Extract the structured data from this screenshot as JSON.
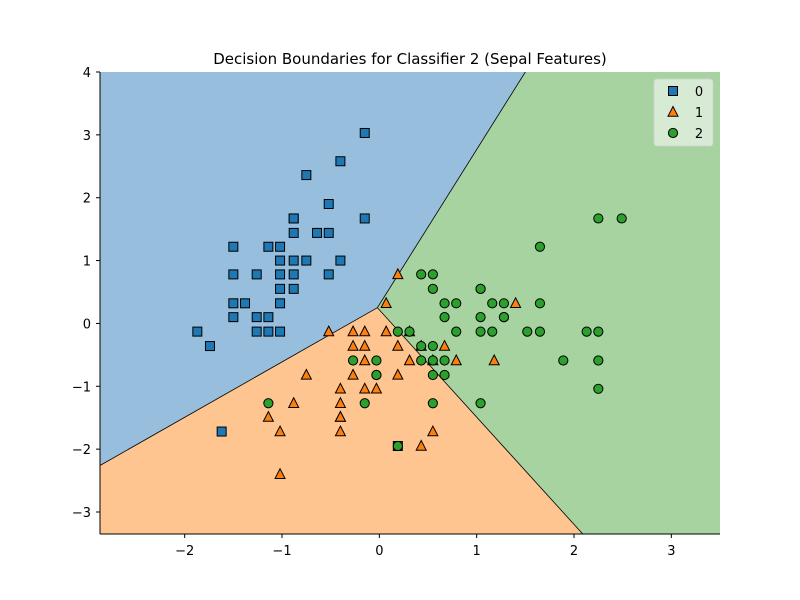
{
  "chart_data": {
    "type": "scatter",
    "title": "Decision Boundaries for Classifier 2 (Sepal Features)",
    "xlabel": "",
    "ylabel": "",
    "xlim": [
      -2.87,
      3.5
    ],
    "ylim": [
      -3.35,
      4.0
    ],
    "xticks": [
      -2,
      -1,
      0,
      1,
      2,
      3
    ],
    "yticks": [
      -3,
      -2,
      -1,
      0,
      1,
      2,
      3,
      4
    ],
    "xtick_labels": [
      "−2",
      "−1",
      "0",
      "1",
      "2",
      "3"
    ],
    "ytick_labels": [
      "−3",
      "−2",
      "−1",
      "0",
      "1",
      "2",
      "3",
      "4"
    ],
    "grid": false,
    "legend_position": "top-right",
    "regions": [
      {
        "class": "0",
        "color": "#98bedd",
        "polygon": [
          [
            -2.87,
            4.0
          ],
          [
            1.5,
            4.0
          ],
          [
            -0.02,
            0.25
          ],
          [
            -2.87,
            -2.26
          ]
        ]
      },
      {
        "class": "2",
        "color": "#a7d3a0",
        "polygon": [
          [
            1.5,
            4.0
          ],
          [
            3.5,
            4.0
          ],
          [
            3.5,
            -3.35
          ],
          [
            2.09,
            -3.35
          ],
          [
            -0.02,
            0.25
          ]
        ]
      },
      {
        "class": "1",
        "color": "#fec591",
        "polygon": [
          [
            -2.87,
            -2.26
          ],
          [
            -0.02,
            0.25
          ],
          [
            2.09,
            -3.35
          ],
          [
            -2.87,
            -3.35
          ]
        ]
      }
    ],
    "series": [
      {
        "name": "0",
        "marker": "square",
        "color": "#1f77b4",
        "points": [
          [
            -0.15,
            3.03
          ],
          [
            -0.4,
            2.58
          ],
          [
            -0.75,
            2.36
          ],
          [
            -0.88,
            1.67
          ],
          [
            -0.88,
            1.67
          ],
          [
            -0.52,
            1.9
          ],
          [
            -0.15,
            1.67
          ],
          [
            -0.88,
            1.44
          ],
          [
            -0.64,
            1.44
          ],
          [
            -0.52,
            1.44
          ],
          [
            -1.5,
            1.22
          ],
          [
            -1.14,
            1.22
          ],
          [
            -1.02,
            1.22
          ],
          [
            -1.02,
            1.0
          ],
          [
            -0.88,
            1.0
          ],
          [
            -0.75,
            1.0
          ],
          [
            -0.4,
            1.0
          ],
          [
            -1.26,
            0.78
          ],
          [
            -1.5,
            0.78
          ],
          [
            -1.02,
            0.78
          ],
          [
            -0.88,
            0.78
          ],
          [
            -0.52,
            0.78
          ],
          [
            -1.02,
            0.55
          ],
          [
            -0.88,
            0.55
          ],
          [
            -1.5,
            0.32
          ],
          [
            -1.38,
            0.32
          ],
          [
            -1.02,
            0.32
          ],
          [
            -1.5,
            0.1
          ],
          [
            -1.26,
            0.1
          ],
          [
            -1.14,
            0.1
          ],
          [
            -1.26,
            -0.13
          ],
          [
            -1.14,
            -0.13
          ],
          [
            -1.02,
            -0.13
          ],
          [
            -1.87,
            -0.13
          ],
          [
            -1.74,
            -0.36
          ],
          [
            -1.62,
            -1.72
          ],
          [
            0.19,
            -1.95
          ]
        ]
      },
      {
        "name": "1",
        "marker": "triangle",
        "color": "#ff7f0e",
        "points": [
          [
            0.19,
            0.78
          ],
          [
            0.07,
            0.32
          ],
          [
            1.4,
            0.32
          ],
          [
            -0.52,
            -0.13
          ],
          [
            -0.27,
            -0.13
          ],
          [
            -0.15,
            -0.13
          ],
          [
            0.07,
            -0.13
          ],
          [
            0.31,
            -0.13
          ],
          [
            -0.27,
            -0.36
          ],
          [
            -0.15,
            -0.36
          ],
          [
            0.19,
            -0.36
          ],
          [
            0.43,
            -0.36
          ],
          [
            0.67,
            -0.36
          ],
          [
            -0.15,
            -0.59
          ],
          [
            0.31,
            -0.59
          ],
          [
            0.55,
            -0.59
          ],
          [
            0.79,
            -0.59
          ],
          [
            1.18,
            -0.59
          ],
          [
            -0.75,
            -0.82
          ],
          [
            -0.27,
            -0.82
          ],
          [
            0.19,
            -0.82
          ],
          [
            -0.4,
            -1.04
          ],
          [
            -0.15,
            -1.04
          ],
          [
            -0.03,
            -1.04
          ],
          [
            -0.4,
            -1.27
          ],
          [
            -0.88,
            -1.27
          ],
          [
            -0.4,
            -1.49
          ],
          [
            -0.4,
            -1.49
          ],
          [
            -1.14,
            -1.49
          ],
          [
            -1.02,
            -1.72
          ],
          [
            -0.4,
            -1.72
          ],
          [
            0.55,
            -1.72
          ],
          [
            0.43,
            -1.95
          ],
          [
            -1.02,
            -2.4
          ]
        ]
      },
      {
        "name": "2",
        "marker": "circle",
        "color": "#2ca02c",
        "points": [
          [
            2.25,
            1.67
          ],
          [
            2.49,
            1.67
          ],
          [
            1.65,
            1.22
          ],
          [
            0.43,
            0.78
          ],
          [
            0.55,
            0.78
          ],
          [
            0.55,
            0.55
          ],
          [
            1.04,
            0.55
          ],
          [
            1.04,
            0.55
          ],
          [
            0.67,
            0.32
          ],
          [
            0.79,
            0.32
          ],
          [
            1.16,
            0.32
          ],
          [
            1.28,
            0.32
          ],
          [
            1.65,
            0.32
          ],
          [
            0.67,
            0.1
          ],
          [
            1.04,
            0.1
          ],
          [
            1.28,
            0.1
          ],
          [
            1.28,
            0.1
          ],
          [
            0.19,
            -0.13
          ],
          [
            0.31,
            -0.13
          ],
          [
            0.79,
            -0.13
          ],
          [
            1.04,
            -0.13
          ],
          [
            1.16,
            -0.13
          ],
          [
            1.52,
            -0.13
          ],
          [
            1.65,
            -0.13
          ],
          [
            2.13,
            -0.13
          ],
          [
            2.25,
            -0.13
          ],
          [
            0.43,
            -0.36
          ],
          [
            0.55,
            -0.36
          ],
          [
            -0.27,
            -0.59
          ],
          [
            -0.03,
            -0.59
          ],
          [
            0.43,
            -0.59
          ],
          [
            0.55,
            -0.59
          ],
          [
            0.67,
            -0.59
          ],
          [
            1.89,
            -0.59
          ],
          [
            2.25,
            -0.59
          ],
          [
            -0.03,
            -0.82
          ],
          [
            -0.03,
            -0.82
          ],
          [
            0.55,
            -0.82
          ],
          [
            0.67,
            -0.82
          ],
          [
            2.25,
            -1.04
          ],
          [
            -1.14,
            -1.27
          ],
          [
            -0.15,
            -1.27
          ],
          [
            0.55,
            -1.27
          ],
          [
            1.04,
            -1.27
          ],
          [
            0.19,
            -1.95
          ]
        ]
      }
    ]
  }
}
